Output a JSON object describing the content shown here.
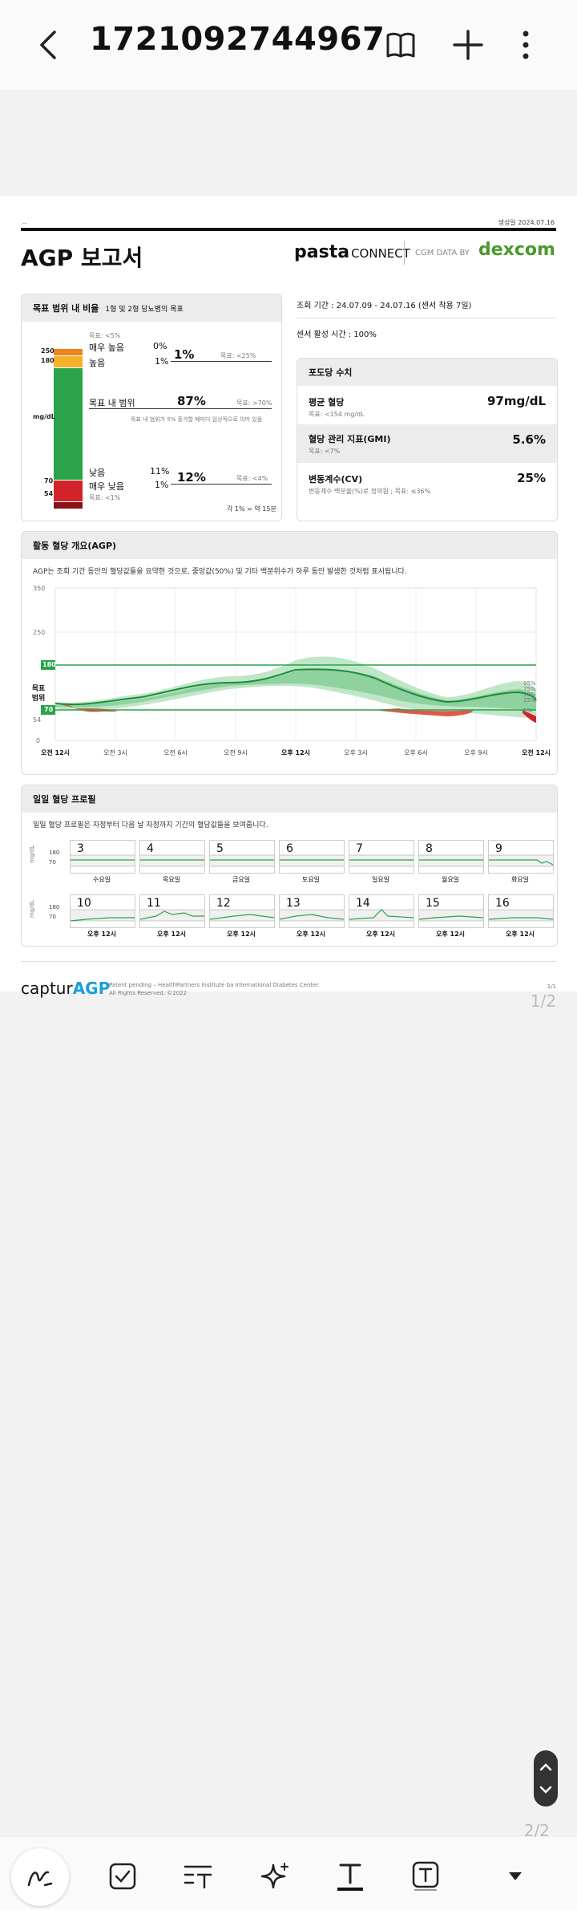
{
  "topbar": {
    "title": "1721092744967"
  },
  "report": {
    "generated": "생성일 2024.07.16",
    "title": "AGP 보고서",
    "brand_pasta": "pasta",
    "brand_connect": "CONNECT",
    "cgm_by": "CGM DATA BY",
    "dexcom": "dexcom",
    "left_dash": "--"
  },
  "tir": {
    "head": "목표 범위 내 비율",
    "head_sub": "1형 및 2형 당뇨병의 목표",
    "goal_top": "목표: <5%",
    "very_high": "매우 높음",
    "very_high_pct": "0%",
    "high": "높음",
    "high_pct": "1%",
    "combined_high": "1%",
    "goal_high": "목표: <25%",
    "in_range": "목표 내 범위",
    "in_range_pct": "87%",
    "goal_in": "목표: >70%",
    "note": "목표 내 범위가 5% 증가할 때마다 임상적으로 의미 있음",
    "low": "낮음",
    "low_pct": "11%",
    "combined_low": "12%",
    "goal_low": "목표: <4%",
    "very_low": "매우 낮음",
    "very_low_pct": "1%",
    "goal_vlow": "목표: <1%",
    "axis_250": "250",
    "axis_180": "180",
    "axis_unit": "mg/dL",
    "axis_70": "70",
    "axis_54": "54",
    "footer": "각 1% = 약 15분"
  },
  "period": {
    "range": "조회 기간 : 24.07.09 - 24.07.16 (센서 착용 7일)",
    "active": "센서 활성 시간 : 100%"
  },
  "glucose": {
    "head": "포도당 수치",
    "avg_label": "평균 혈당",
    "avg_goal": "목표: <154 mg/dL",
    "avg_value": "97mg/dL",
    "gmi_label": "혈당 관리 지표(GMI)",
    "gmi_goal": "목표: <7%",
    "gmi_value": "5.6%",
    "cv_label": "변동계수(CV)",
    "cv_goal": "변동계수 백분율(%)로 정의됨 ; 목표: ≤36%",
    "cv_value": "25%"
  },
  "agp": {
    "head": "활동 혈당 개요(AGP)",
    "desc": "AGP는 조회 기간 동안의 혈당값들을 요약한 것으로, 중앙값(50%) 및 기타 백분위수가 하루 동안 발생한 것처럼 표시됩니다.",
    "y_350": "350",
    "y_250": "250",
    "y_180": "180",
    "y_70": "70",
    "y_54": "54",
    "y_0": "0",
    "target_label": "목표 범위",
    "x_labels": [
      "오전 12시",
      "오전 3시",
      "오전 6시",
      "오전 9시",
      "오후 12시",
      "오후 3시",
      "오후 6시",
      "오후 9시",
      "오전 12시"
    ],
    "p95": "95%",
    "p75": "75%",
    "p50": "50%",
    "p25": "25%",
    "p5": "5%"
  },
  "daily": {
    "head": "일일 혈당 프로필",
    "desc": "일일 혈당 프로필은 자정부터 다음 날 자정까지 기간의 혈당값들을 보여줍니다.",
    "unit": "mg/dL",
    "y180": "180",
    "y70": "70",
    "row1_days": [
      "3",
      "4",
      "5",
      "6",
      "7",
      "8",
      "9"
    ],
    "row1_names": [
      "수요일",
      "목요일",
      "금요일",
      "토요일",
      "일요일",
      "월요일",
      "화요일"
    ],
    "row2_days": [
      "10",
      "11",
      "12",
      "13",
      "14",
      "15",
      "16"
    ],
    "row2_names": [
      "오후 12시",
      "오후 12시",
      "오후 12시",
      "오후 12시",
      "오후 12시",
      "오후 12시",
      "오후 12시"
    ]
  },
  "footer": {
    "captur": "captur",
    "agp": "AGP",
    "patent": "Patent pending – HealthPartners Institute ba International Diabetes Center",
    "rights": "All Rights Reserved. ©2022",
    "page_small": "1/1",
    "page": "1/2"
  },
  "viewer": {
    "page_indicator": "2/2"
  },
  "colors": {
    "green": "#1e9e48",
    "orange": "#f39c20",
    "red": "#d2232a",
    "darkred": "#8b1015",
    "dexcom": "#4a9a2a"
  }
}
